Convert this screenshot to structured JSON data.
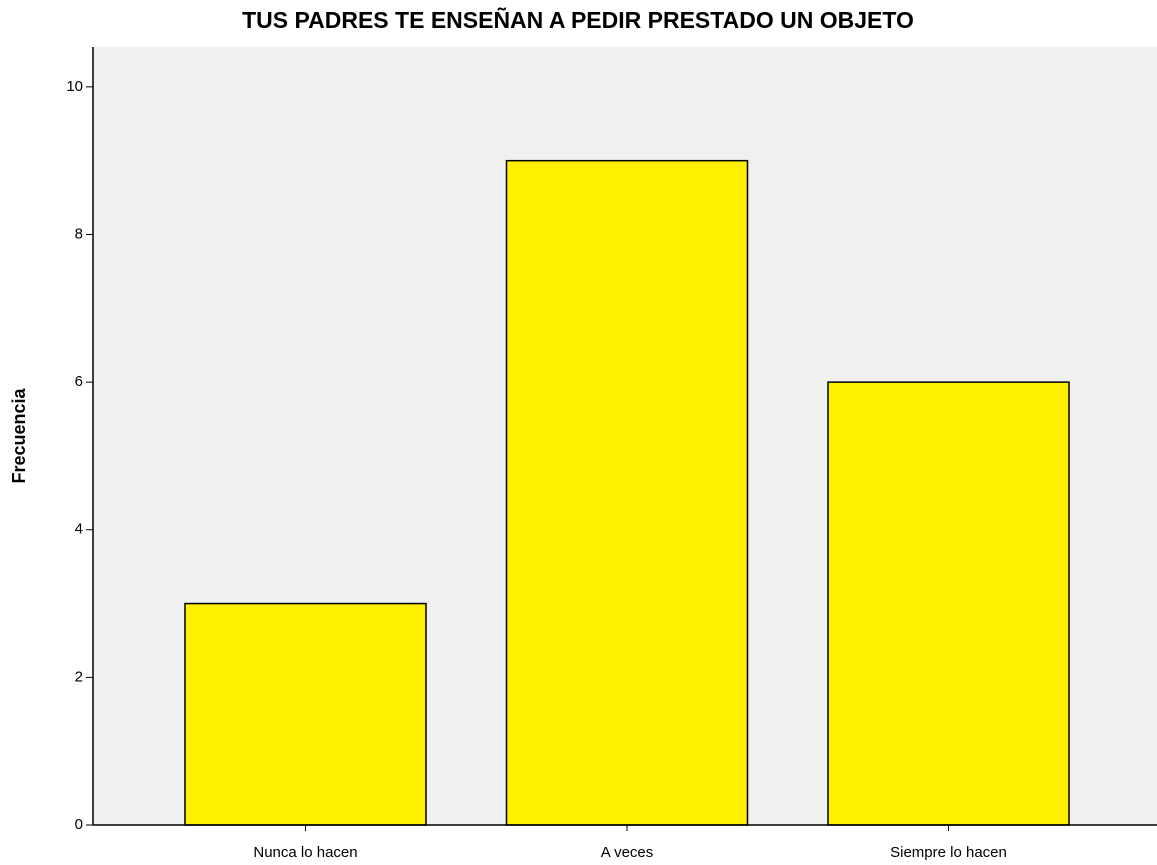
{
  "chart_data": {
    "type": "bar",
    "title": "TUS PADRES TE ENSEÑAN A PEDIR PRESTADO UN OBJETO",
    "y_label": "Frecuencia",
    "categories": [
      "Nunca lo hacen",
      "A veces",
      "Siempre lo hacen"
    ],
    "values": [
      3,
      9,
      6
    ],
    "color": "#fff000",
    "ylim": [
      0,
      10.54
    ],
    "yticks": [
      0,
      2,
      4,
      6,
      8,
      10
    ],
    "grid": false
  }
}
